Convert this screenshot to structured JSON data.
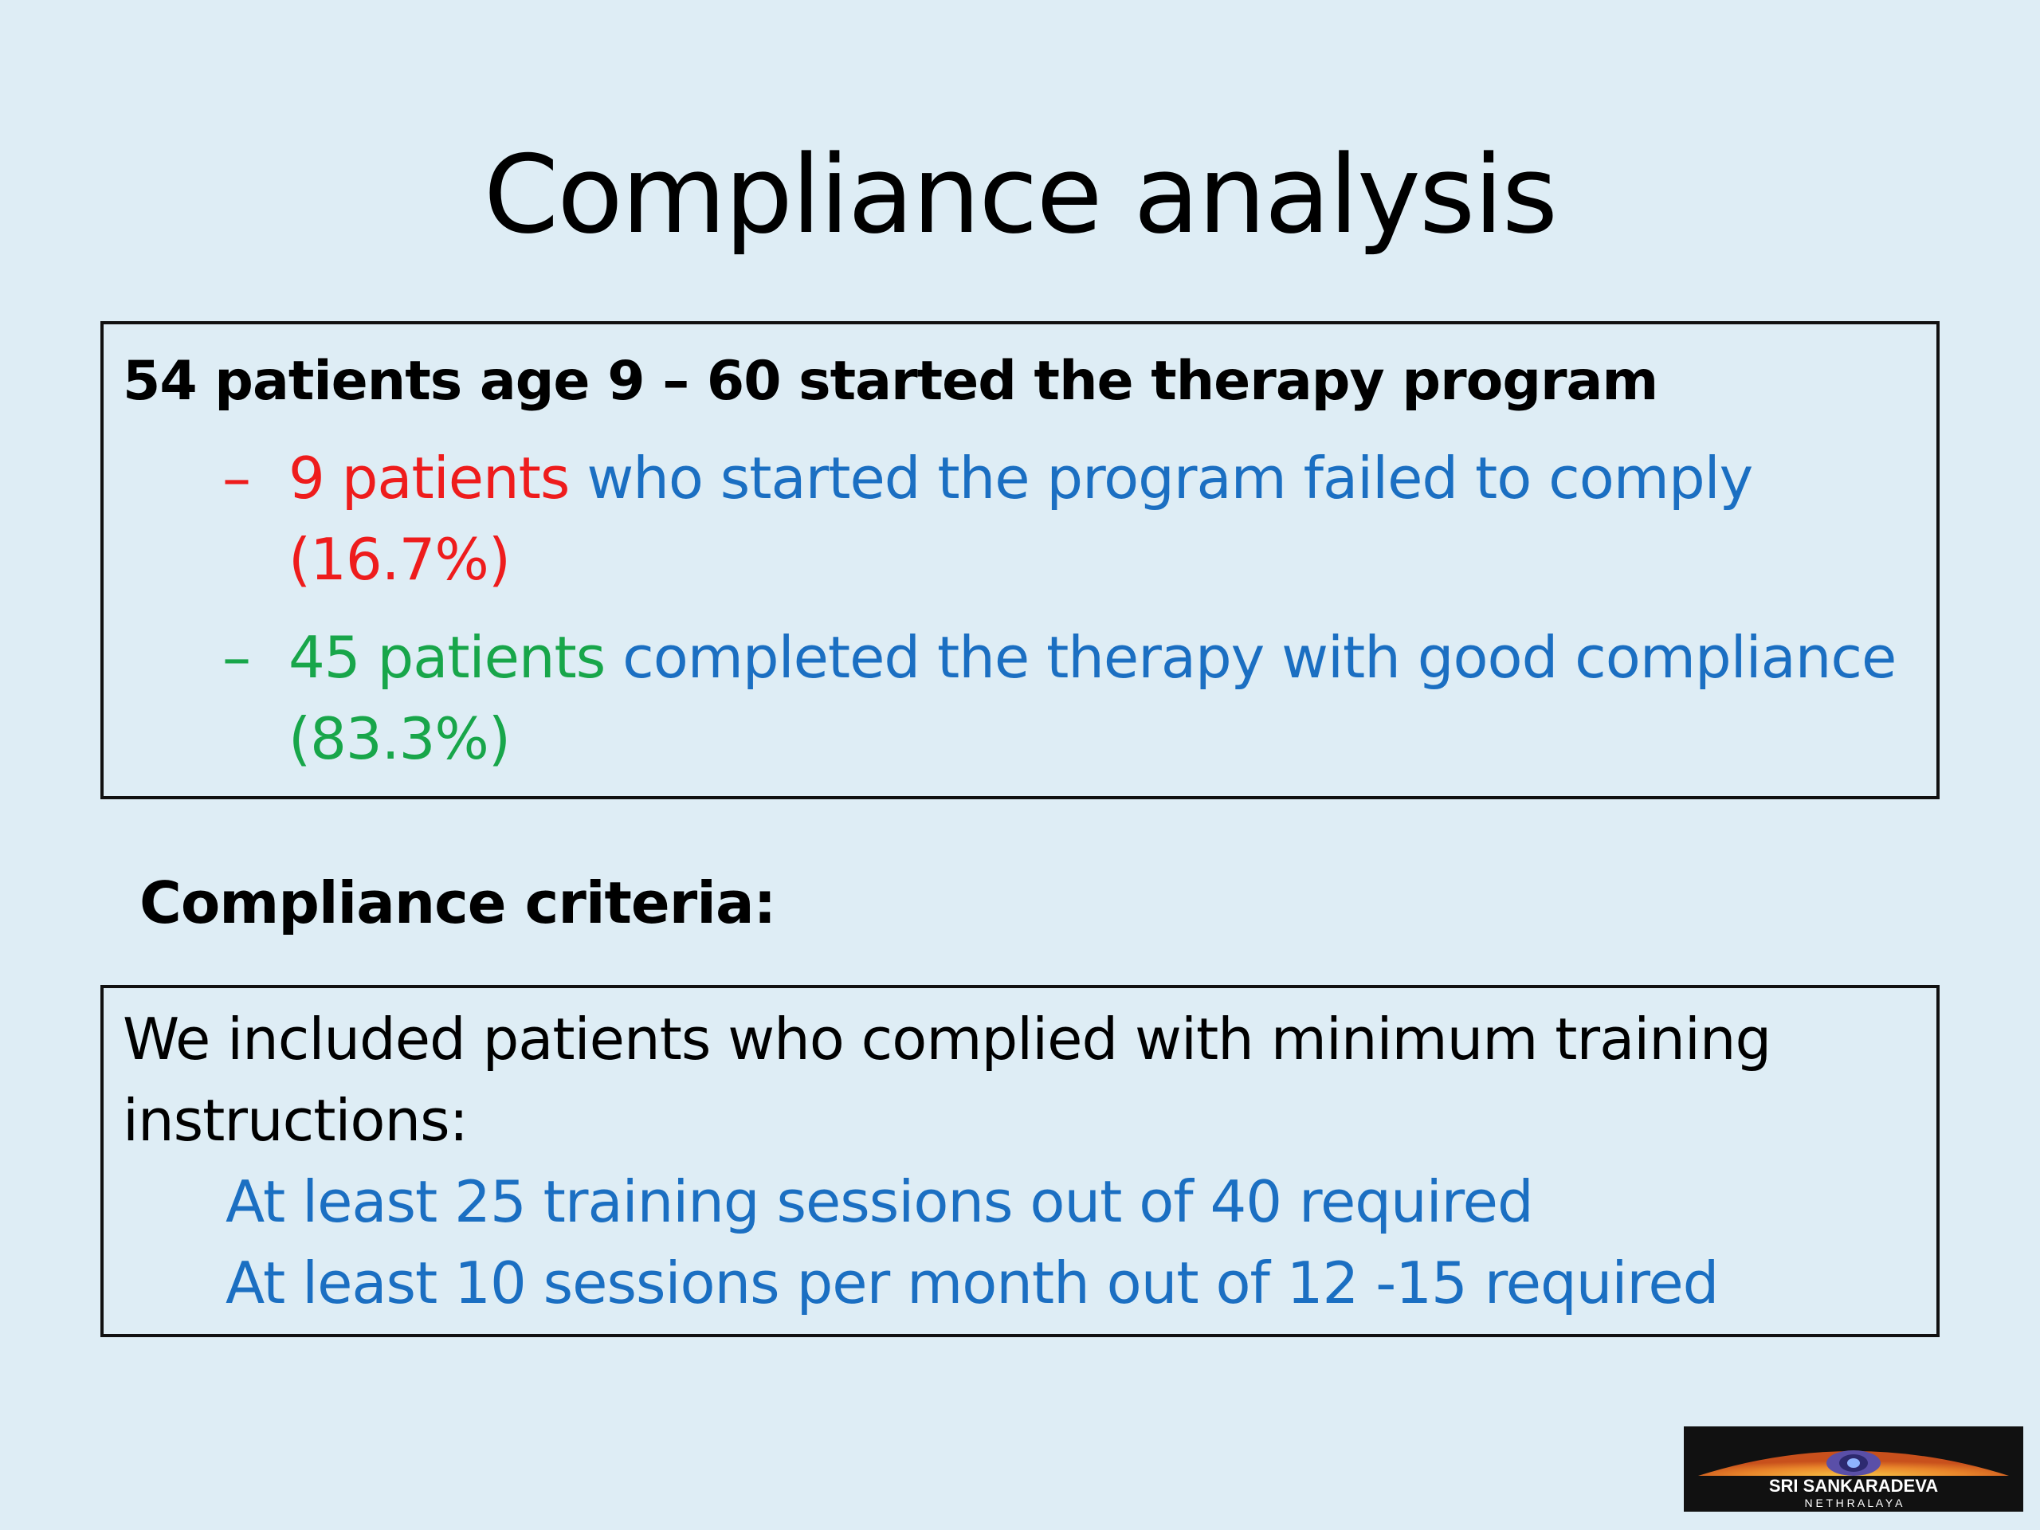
{
  "slide": {
    "title": "Compliance analysis"
  },
  "box1": {
    "heading": "54 patients age 9 – 60 started the therapy program",
    "bullet1": {
      "dash": "–",
      "highlight": "9 patients",
      "text": " who started the program failed to comply",
      "percent": "(16.7%)"
    },
    "bullet2": {
      "dash": "–",
      "highlight": "45 patients",
      "text": " completed the therapy with good compliance",
      "percent": "(83.3%)"
    }
  },
  "criteria": {
    "heading": "Compliance criteria:"
  },
  "box2": {
    "line1": "We included patients who complied with minimum training",
    "line2": "instructions:",
    "item1": "At least 25 training sessions out of 40 required",
    "item2": "At least 10 sessions per month out of 12 -15 required"
  },
  "logo": {
    "line1": "SRI SANKARADEVA",
    "line2": "N E T H R A L A Y A"
  },
  "colors": {
    "background": "#deedf5",
    "red": "#ee1c1c",
    "blue": "#1b6fc2",
    "green": "#18a64a"
  }
}
